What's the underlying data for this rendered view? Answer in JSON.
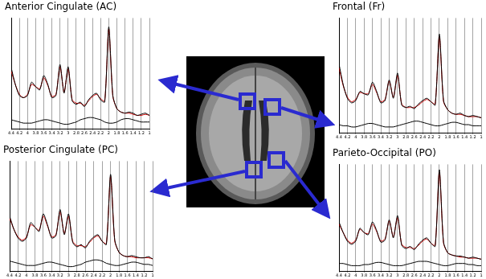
{
  "chart_data": [
    {
      "type": "line",
      "title": "Anterior Cingulate (AC)",
      "x": [
        4.4,
        4.3,
        4.2,
        4.1,
        4.0,
        3.9,
        3.8,
        3.7,
        3.6,
        3.5,
        3.4,
        3.3,
        3.2,
        3.1,
        3.0,
        2.9,
        2.8,
        2.7,
        2.6,
        2.5,
        2.4,
        2.3,
        2.2,
        2.1,
        2.0,
        1.9,
        1.8,
        1.7,
        1.6,
        1.5,
        1.4,
        1.3,
        1.2,
        1.1,
        1.0
      ],
      "xlim": [
        4.4,
        1.0
      ],
      "xticks": [
        4.4,
        4.2,
        4.0,
        3.8,
        3.6,
        3.4,
        3.2,
        3.0,
        2.8,
        2.6,
        2.4,
        2.2,
        2.0,
        1.8,
        1.6,
        1.4,
        1.2,
        1.0
      ],
      "ylim": [
        0,
        1
      ],
      "grid": true,
      "tick_labels": "x",
      "series": [
        {
          "color": "#000000",
          "values": [
            0.55,
            0.4,
            0.3,
            0.28,
            0.3,
            0.42,
            0.38,
            0.35,
            0.48,
            0.4,
            0.28,
            0.3,
            0.58,
            0.32,
            0.56,
            0.25,
            0.22,
            0.24,
            0.2,
            0.26,
            0.3,
            0.32,
            0.26,
            0.24,
            0.92,
            0.3,
            0.18,
            0.15,
            0.14,
            0.15,
            0.14,
            0.12,
            0.13,
            0.14,
            0.12
          ]
        },
        {
          "color": "#cc0000",
          "values": [
            0.52,
            0.4,
            0.31,
            0.28,
            0.31,
            0.4,
            0.38,
            0.36,
            0.46,
            0.39,
            0.29,
            0.31,
            0.56,
            0.33,
            0.54,
            0.26,
            0.23,
            0.23,
            0.21,
            0.25,
            0.29,
            0.31,
            0.27,
            0.25,
            0.9,
            0.29,
            0.18,
            0.15,
            0.14,
            0.14,
            0.13,
            0.12,
            0.12,
            0.13,
            0.12
          ]
        },
        {
          "color": "#000000",
          "values": [
            0.08,
            0.07,
            0.06,
            0.05,
            0.05,
            0.05,
            0.06,
            0.07,
            0.08,
            0.08,
            0.07,
            0.06,
            0.05,
            0.04,
            0.04,
            0.05,
            0.06,
            0.08,
            0.09,
            0.1,
            0.1,
            0.09,
            0.08,
            0.06,
            0.05,
            0.05,
            0.06,
            0.08,
            0.09,
            0.09,
            0.08,
            0.07,
            0.06,
            0.06,
            0.06
          ]
        }
      ]
    },
    {
      "type": "line",
      "title": "Frontal (Fr)",
      "x": [
        4.4,
        4.3,
        4.2,
        4.1,
        4.0,
        3.9,
        3.8,
        3.7,
        3.6,
        3.5,
        3.4,
        3.3,
        3.2,
        3.1,
        3.0,
        2.9,
        2.8,
        2.7,
        2.6,
        2.5,
        2.4,
        2.3,
        2.2,
        2.1,
        2.0,
        1.9,
        1.8,
        1.7,
        1.6,
        1.5,
        1.4,
        1.3,
        1.2,
        1.1,
        1.0
      ],
      "xlim": [
        4.4,
        1.0
      ],
      "xticks": [
        4.4,
        4.2,
        4.0,
        3.8,
        3.6,
        3.4,
        3.2,
        3.0,
        2.8,
        2.6,
        2.4,
        2.2,
        2.0,
        1.8,
        1.6,
        1.4,
        1.2,
        1.0
      ],
      "ylim": [
        0,
        1
      ],
      "grid": true,
      "tick_labels": "x",
      "series": [
        {
          "color": "#000000",
          "values": [
            0.6,
            0.42,
            0.3,
            0.26,
            0.28,
            0.36,
            0.34,
            0.33,
            0.44,
            0.36,
            0.26,
            0.28,
            0.46,
            0.3,
            0.52,
            0.24,
            0.22,
            0.23,
            0.21,
            0.25,
            0.28,
            0.3,
            0.27,
            0.24,
            0.86,
            0.28,
            0.2,
            0.17,
            0.16,
            0.17,
            0.15,
            0.14,
            0.15,
            0.14,
            0.13
          ]
        },
        {
          "color": "#cc0000",
          "values": [
            0.57,
            0.41,
            0.31,
            0.27,
            0.29,
            0.35,
            0.34,
            0.34,
            0.42,
            0.35,
            0.27,
            0.29,
            0.45,
            0.31,
            0.5,
            0.25,
            0.22,
            0.22,
            0.22,
            0.24,
            0.27,
            0.29,
            0.27,
            0.25,
            0.84,
            0.27,
            0.2,
            0.17,
            0.16,
            0.16,
            0.15,
            0.14,
            0.14,
            0.14,
            0.13
          ]
        },
        {
          "color": "#000000",
          "values": [
            0.07,
            0.06,
            0.06,
            0.05,
            0.05,
            0.06,
            0.07,
            0.08,
            0.08,
            0.07,
            0.06,
            0.05,
            0.05,
            0.05,
            0.06,
            0.07,
            0.08,
            0.09,
            0.1,
            0.1,
            0.09,
            0.08,
            0.07,
            0.06,
            0.06,
            0.07,
            0.08,
            0.09,
            0.09,
            0.08,
            0.07,
            0.07,
            0.06,
            0.06,
            0.06
          ]
        }
      ]
    },
    {
      "type": "line",
      "title": "Posterior Cingulate (PC)",
      "x": [
        4.4,
        4.3,
        4.2,
        4.1,
        4.0,
        3.9,
        3.8,
        3.7,
        3.6,
        3.5,
        3.4,
        3.3,
        3.2,
        3.1,
        3.0,
        2.9,
        2.8,
        2.7,
        2.6,
        2.5,
        2.4,
        2.3,
        2.2,
        2.1,
        2.0,
        1.9,
        1.8,
        1.7,
        1.6,
        1.5,
        1.4,
        1.3,
        1.2,
        1.1,
        1.0
      ],
      "xlim": [
        4.4,
        1.0
      ],
      "xticks": [
        4.4,
        4.2,
        4.0,
        3.8,
        3.6,
        3.4,
        3.2,
        3.0,
        2.8,
        2.6,
        2.4,
        2.2,
        2.0,
        1.8,
        1.6,
        1.4,
        1.2,
        1.0
      ],
      "ylim": [
        0,
        1
      ],
      "grid": true,
      "tick_labels": "x",
      "series": [
        {
          "color": "#000000",
          "values": [
            0.5,
            0.38,
            0.3,
            0.27,
            0.3,
            0.44,
            0.4,
            0.36,
            0.52,
            0.42,
            0.3,
            0.32,
            0.56,
            0.33,
            0.52,
            0.26,
            0.22,
            0.24,
            0.21,
            0.27,
            0.31,
            0.33,
            0.27,
            0.24,
            0.88,
            0.28,
            0.17,
            0.14,
            0.13,
            0.14,
            0.13,
            0.12,
            0.12,
            0.13,
            0.11
          ]
        },
        {
          "color": "#cc0000",
          "values": [
            0.48,
            0.38,
            0.31,
            0.28,
            0.31,
            0.42,
            0.4,
            0.37,
            0.5,
            0.41,
            0.31,
            0.33,
            0.54,
            0.34,
            0.5,
            0.27,
            0.23,
            0.23,
            0.22,
            0.26,
            0.3,
            0.32,
            0.27,
            0.25,
            0.86,
            0.27,
            0.17,
            0.14,
            0.13,
            0.13,
            0.12,
            0.12,
            0.12,
            0.12,
            0.11
          ]
        },
        {
          "color": "#000000",
          "values": [
            0.09,
            0.08,
            0.07,
            0.06,
            0.05,
            0.05,
            0.05,
            0.06,
            0.07,
            0.08,
            0.08,
            0.07,
            0.06,
            0.05,
            0.04,
            0.04,
            0.05,
            0.06,
            0.08,
            0.09,
            0.1,
            0.1,
            0.09,
            0.07,
            0.06,
            0.05,
            0.05,
            0.06,
            0.07,
            0.08,
            0.08,
            0.07,
            0.06,
            0.06,
            0.05
          ]
        }
      ]
    },
    {
      "type": "line",
      "title": "Parieto-Occipital (PO)",
      "x": [
        4.4,
        4.3,
        4.2,
        4.1,
        4.0,
        3.9,
        3.8,
        3.7,
        3.6,
        3.5,
        3.4,
        3.3,
        3.2,
        3.1,
        3.0,
        2.9,
        2.8,
        2.7,
        2.6,
        2.5,
        2.4,
        2.3,
        2.2,
        2.1,
        2.0,
        1.9,
        1.8,
        1.7,
        1.6,
        1.5,
        1.4,
        1.3,
        1.2,
        1.1,
        1.0
      ],
      "xlim": [
        4.4,
        1.0
      ],
      "xticks": [
        4.4,
        4.2,
        4.0,
        3.8,
        3.6,
        3.4,
        3.2,
        3.0,
        2.8,
        2.6,
        2.4,
        2.2,
        2.0,
        1.8,
        1.6,
        1.4,
        1.2,
        1.0
      ],
      "ylim": [
        0,
        1
      ],
      "grid": true,
      "tick_labels": "x",
      "series": [
        {
          "color": "#000000",
          "values": [
            0.46,
            0.36,
            0.28,
            0.25,
            0.28,
            0.4,
            0.36,
            0.34,
            0.46,
            0.38,
            0.27,
            0.29,
            0.48,
            0.31,
            0.52,
            0.24,
            0.21,
            0.23,
            0.2,
            0.25,
            0.29,
            0.31,
            0.26,
            0.23,
            0.95,
            0.27,
            0.17,
            0.15,
            0.14,
            0.14,
            0.13,
            0.12,
            0.13,
            0.12,
            0.11
          ]
        },
        {
          "color": "#cc0000",
          "values": [
            0.44,
            0.36,
            0.29,
            0.26,
            0.29,
            0.39,
            0.36,
            0.35,
            0.44,
            0.37,
            0.28,
            0.3,
            0.47,
            0.32,
            0.5,
            0.25,
            0.22,
            0.22,
            0.21,
            0.24,
            0.28,
            0.3,
            0.26,
            0.24,
            0.93,
            0.26,
            0.17,
            0.15,
            0.14,
            0.13,
            0.13,
            0.12,
            0.12,
            0.12,
            0.11
          ]
        },
        {
          "color": "#000000",
          "values": [
            0.07,
            0.07,
            0.06,
            0.05,
            0.05,
            0.05,
            0.06,
            0.06,
            0.07,
            0.08,
            0.08,
            0.07,
            0.06,
            0.05,
            0.05,
            0.05,
            0.06,
            0.07,
            0.08,
            0.09,
            0.09,
            0.09,
            0.08,
            0.07,
            0.06,
            0.05,
            0.05,
            0.06,
            0.07,
            0.07,
            0.07,
            0.06,
            0.06,
            0.05,
            0.05
          ]
        }
      ]
    }
  ]
}
